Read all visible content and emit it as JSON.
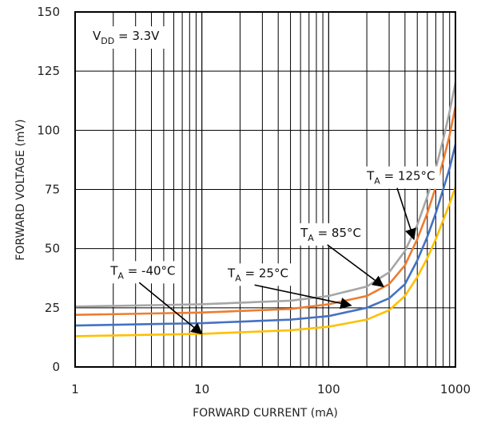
{
  "chart_data": {
    "type": "line",
    "xlabel": "FORWARD CURRENT (mA)",
    "ylabel": "FORWARD VOLTAGE (mV)",
    "x_scale": "log",
    "xlim": [
      1,
      1000
    ],
    "ylim": [
      0,
      150
    ],
    "x_ticks": [
      "1",
      "10",
      "100",
      "1000"
    ],
    "y_ticks": [
      "0",
      "25",
      "50",
      "75",
      "100",
      "125",
      "150"
    ],
    "grid": true,
    "condition": {
      "main": "V",
      "sub": "DD",
      "rest": " = 3.3V"
    },
    "series": [
      {
        "name": "T_A = 125°C",
        "color": "#a6a6a6",
        "points": [
          [
            1,
            25.5
          ],
          [
            10,
            26.5
          ],
          [
            50,
            28
          ],
          [
            100,
            30
          ],
          [
            200,
            34
          ],
          [
            300,
            40
          ],
          [
            400,
            49
          ],
          [
            500,
            60
          ],
          [
            600,
            72
          ],
          [
            700,
            84
          ],
          [
            800,
            96
          ],
          [
            900,
            108
          ],
          [
            1000,
            120
          ]
        ]
      },
      {
        "name": "T_A = 85°C",
        "color": "#ed7d31",
        "points": [
          [
            1,
            22
          ],
          [
            10,
            23
          ],
          [
            50,
            24.5
          ],
          [
            100,
            26.5
          ],
          [
            200,
            30
          ],
          [
            300,
            35
          ],
          [
            400,
            43
          ],
          [
            500,
            54
          ],
          [
            600,
            65
          ],
          [
            700,
            76
          ],
          [
            800,
            87
          ],
          [
            900,
            98
          ],
          [
            1000,
            110
          ]
        ]
      },
      {
        "name": "T_A = 25°C",
        "color": "#4472c4",
        "points": [
          [
            1,
            17.5
          ],
          [
            10,
            18.5
          ],
          [
            50,
            20
          ],
          [
            100,
            21.5
          ],
          [
            200,
            25
          ],
          [
            300,
            29
          ],
          [
            400,
            35
          ],
          [
            500,
            45
          ],
          [
            600,
            55
          ],
          [
            700,
            65
          ],
          [
            800,
            75
          ],
          [
            900,
            84
          ],
          [
            1000,
            94
          ]
        ]
      },
      {
        "name": "T_A = -40°C",
        "color": "#ffc000",
        "points": [
          [
            1,
            13
          ],
          [
            10,
            14
          ],
          [
            50,
            15.5
          ],
          [
            100,
            17
          ],
          [
            200,
            20
          ],
          [
            300,
            24
          ],
          [
            400,
            30
          ],
          [
            500,
            38
          ],
          [
            600,
            46
          ],
          [
            700,
            54
          ],
          [
            800,
            62
          ],
          [
            900,
            69
          ],
          [
            1000,
            76
          ]
        ]
      }
    ],
    "annotations": [
      {
        "main": "T",
        "sub": "A",
        "rest": " = 125°C",
        "label_xy": [
          200,
          79
        ],
        "arrow_to": [
          470,
          54
        ]
      },
      {
        "main": "T",
        "sub": "A",
        "rest": " = 85°C",
        "label_xy": [
          60,
          55
        ],
        "arrow_to": [
          270,
          34
        ]
      },
      {
        "main": "T",
        "sub": "A",
        "rest": " = 25°C",
        "label_xy": [
          16,
          38
        ],
        "arrow_to": [
          150,
          26
        ]
      },
      {
        "main": "T",
        "sub": "A",
        "rest": " = -40°C",
        "label_xy": [
          1.9,
          39
        ],
        "arrow_to": [
          10,
          14
        ]
      }
    ]
  }
}
